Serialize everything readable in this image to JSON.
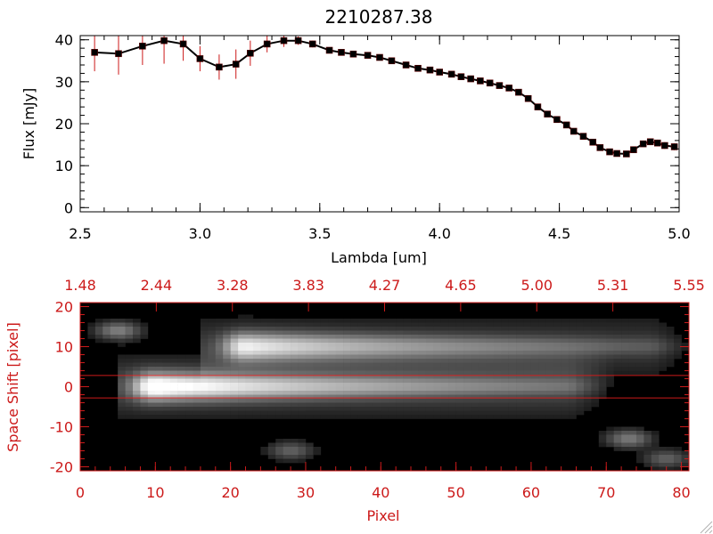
{
  "chart_data": [
    {
      "type": "line",
      "title": "2210287.38",
      "xlabel": "Lambda [um]",
      "ylabel": "Flux [mJy]",
      "xlim": [
        2.5,
        5.0
      ],
      "ylim": [
        -1,
        41
      ],
      "x_ticks": [
        "2.5",
        "3.0",
        "3.5",
        "4.0",
        "4.5",
        "5.0"
      ],
      "y_ticks": [
        "0",
        "10",
        "20",
        "30",
        "40"
      ],
      "series": [
        {
          "marker": "square",
          "line_color": "#000000",
          "marker_color": "#000000",
          "errorbar_color": "#cc1a1a",
          "x": [
            2.56,
            2.66,
            2.76,
            2.85,
            2.93,
            3.0,
            3.08,
            3.15,
            3.21,
            3.28,
            3.35,
            3.41,
            3.47,
            3.54,
            3.59,
            3.64,
            3.7,
            3.75,
            3.8,
            3.86,
            3.91,
            3.96,
            4.0,
            4.05,
            4.09,
            4.13,
            4.17,
            4.21,
            4.25,
            4.29,
            4.33,
            4.37,
            4.41,
            4.45,
            4.49,
            4.53,
            4.56,
            4.6,
            4.64,
            4.67,
            4.71,
            4.74,
            4.78,
            4.81,
            4.85,
            4.88,
            4.91,
            4.94,
            4.98
          ],
          "y": [
            37,
            36.7,
            38.5,
            39.8,
            39,
            35.5,
            33.5,
            34.2,
            36.8,
            39,
            39.8,
            39.8,
            39,
            37.5,
            37,
            36.6,
            36.3,
            35.8,
            35,
            34,
            33.2,
            32.8,
            32.3,
            31.8,
            31.2,
            30.7,
            30.2,
            29.7,
            29.1,
            28.5,
            27.5,
            26,
            24,
            22.3,
            21,
            19.7,
            18.2,
            17,
            15.6,
            14.3,
            13.3,
            12.9,
            12.8,
            13.8,
            15.2,
            15.7,
            15.4,
            14.8,
            14.5
          ],
          "yerr": [
            4.5,
            5,
            4.5,
            5.5,
            4,
            3,
            3,
            3.5,
            3,
            2,
            1.5,
            1,
            0.8,
            0.6,
            0.5,
            0.5,
            0.5,
            0.5,
            0.5,
            0.5,
            0.5,
            0.5,
            0.5,
            0.5,
            0.5,
            0.5,
            0.5,
            0.5,
            0.5,
            0.5,
            0.5,
            0.5,
            0.5,
            0.5,
            0.5,
            0.5,
            0.5,
            0.5,
            0.5,
            0.5,
            0.5,
            0.5,
            0.5,
            0.5,
            0.6,
            0.8,
            0.8,
            0.8,
            0.8
          ]
        }
      ]
    },
    {
      "type": "heatmap",
      "title": "",
      "xlabel": "Pixel",
      "ylabel": "Space Shift [pixel]",
      "xlim": [
        0,
        81
      ],
      "ylim": [
        -21,
        21
      ],
      "x_ticks": [
        "0",
        "10",
        "20",
        "30",
        "40",
        "50",
        "60",
        "70",
        "80"
      ],
      "y_ticks": [
        "-20",
        "-10",
        "0",
        "10",
        "20"
      ],
      "top_axis_ticks": [
        "1.48",
        "2.44",
        "3.28",
        "3.83",
        "4.27",
        "4.65",
        "5.00",
        "5.31",
        "5.55"
      ],
      "colormap": "grayscale",
      "aperture_lines_y": [
        2.8,
        -2.8
      ],
      "features": [
        {
          "kind": "trace",
          "x_start": 7,
          "x_end": 70,
          "y_center": 0,
          "peak_x": 10,
          "peak": 1.0
        },
        {
          "kind": "trace",
          "x_start": 18,
          "x_end": 81,
          "y_center": 10,
          "peak_x": 22,
          "peak": 0.78
        },
        {
          "kind": "blob",
          "x": 5,
          "y": 14,
          "peak": 0.42
        },
        {
          "kind": "blob",
          "x": 28,
          "y": -16,
          "peak": 0.3
        },
        {
          "kind": "blob",
          "x": 73,
          "y": -13,
          "peak": 0.4
        },
        {
          "kind": "blob",
          "x": 78,
          "y": -18,
          "peak": 0.3
        }
      ]
    }
  ],
  "colors": {
    "axis_top": "#000000",
    "axis_bottom": "#cc1a1a",
    "errorbar": "#cc1a1a",
    "aperture_line": "#cc1a1a",
    "background": "#ffffff"
  },
  "icons": {
    "resize_grip": "resize-grip-icon"
  }
}
